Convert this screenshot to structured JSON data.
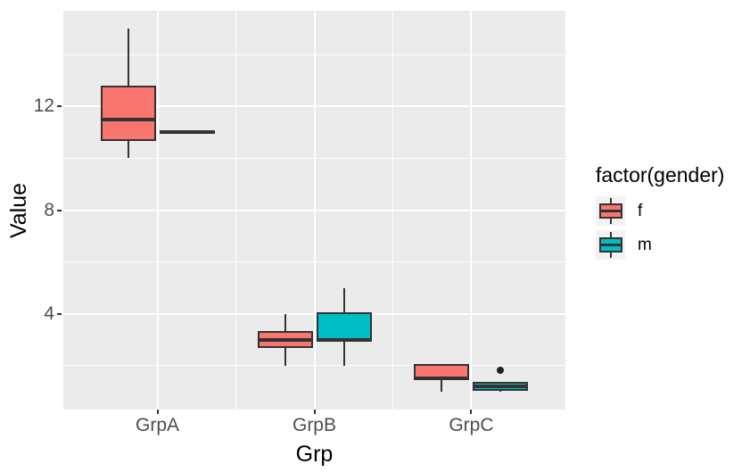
{
  "figure": {
    "background": "#FFFFFF"
  },
  "x_axis": {
    "title": "Grp",
    "categories": [
      "GrpA",
      "GrpB",
      "GrpC"
    ]
  },
  "y_axis": {
    "title": "Value",
    "tick_labels": [
      "4",
      "8",
      "12"
    ],
    "major_ticks": [
      4,
      8,
      12
    ],
    "minor_ticks": [
      2,
      6,
      10,
      14
    ],
    "range": [
      0.3,
      15.7
    ]
  },
  "legend": {
    "title": "factor(gender)",
    "items": [
      {
        "label": "f",
        "color": "#F8766D"
      },
      {
        "label": "m",
        "color": "#00BFC4"
      }
    ]
  },
  "chart_data": {
    "type": "boxplot",
    "title": "",
    "xlabel": "Grp",
    "ylabel": "Value",
    "categories": [
      "GrpA",
      "GrpB",
      "GrpC"
    ],
    "ylim": [
      0.3,
      15.7
    ],
    "y_major_gridlines": [
      4,
      8,
      12
    ],
    "y_minor_gridlines": [
      2,
      6,
      10,
      14
    ],
    "grid": true,
    "legend_title": "factor(gender)",
    "legend_position": "right",
    "series": [
      {
        "name": "f",
        "color": "#F8766D",
        "boxes": [
          {
            "category": "GrpA",
            "whisker_low": 10,
            "q1": 10.75,
            "median": 11.5,
            "q3": 12.75,
            "whisker_high": 15,
            "outliers": []
          },
          {
            "category": "GrpB",
            "whisker_low": 2,
            "q1": 2.75,
            "median": 3,
            "q3": 3.25,
            "whisker_high": 4,
            "outliers": []
          },
          {
            "category": "GrpC",
            "whisker_low": 1,
            "q1": 1.5,
            "median": 1.5,
            "q3": 2,
            "whisker_high": 2,
            "outliers": []
          }
        ]
      },
      {
        "name": "m",
        "color": "#00BFC4",
        "boxes": [
          {
            "category": "GrpA",
            "whisker_low": 11,
            "q1": 11,
            "median": 11,
            "q3": 11,
            "whisker_high": 11,
            "outliers": []
          },
          {
            "category": "GrpB",
            "whisker_low": 2,
            "q1": 3,
            "median": 3,
            "q3": 4,
            "whisker_high": 5,
            "outliers": []
          },
          {
            "category": "GrpC",
            "whisker_low": 1,
            "q1": 1.1,
            "median": 1.2,
            "q3": 1.3,
            "whisker_high": 1.3,
            "outliers": [
              1.8
            ]
          }
        ]
      }
    ]
  },
  "colors": {
    "series_f": "#F8766D",
    "series_m": "#00BFC4",
    "panel_background": "#EBEBEB",
    "gridline": "#FFFFFF",
    "box_outline": "#333333",
    "outlier": "#222222",
    "tick_text": "#4D4D4D",
    "title_text": "#000000",
    "legend_key_background": "#F2F2F2"
  }
}
